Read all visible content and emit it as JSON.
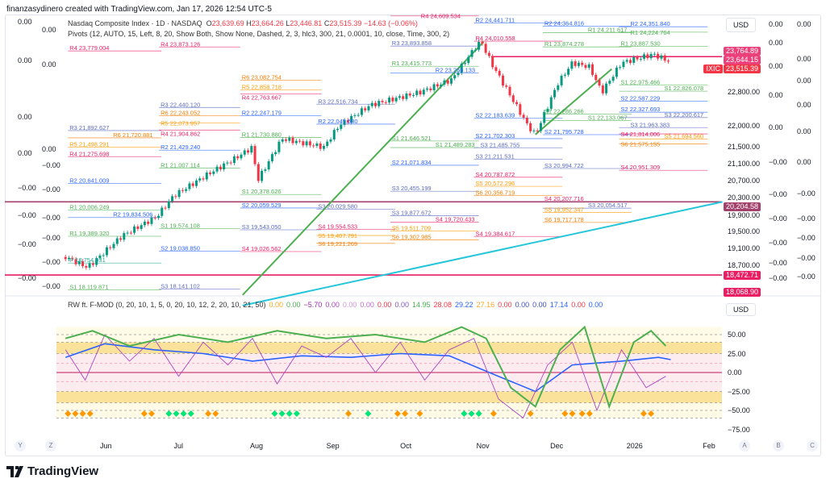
{
  "header": {
    "credit": "finanzasydinero created with TradingView.com, Jan 17, 2026 12:54 UTC-5"
  },
  "legend": {
    "symbol": "Nasdaq Composite Index · 1D · NASDAQ",
    "o_label": "O",
    "open": "23,639.69",
    "h_label": "H",
    "high": "23,664.26",
    "l_label": "L",
    "low": "23,446.81",
    "c_label": "C",
    "close": "23,515.39",
    "change": "−14.63 (−0.06%)",
    "pivots": "Pivots (12, AUTO, 15, Left, 8, 20, Show Both, Show None, Dashed, 2, 3, hlc3, 300, 21, 0.0001, 10, close, Time, 300, 2)"
  },
  "indicator_legend": {
    "name": "RW ft. F-MOD (0, 20, 10, 1, 5, 0, 20, 10, 12, 2, 20, 10, 21, 50)",
    "values": [
      {
        "v": "0.00",
        "c": "#f5a623"
      },
      {
        "v": "0.00",
        "c": "#4caf50"
      },
      {
        "v": "−5.70",
        "c": "#9c27b0"
      },
      {
        "v": "0.00",
        "c": "#ab47bc"
      },
      {
        "v": "0.00",
        "c": "#ce93d8"
      },
      {
        "v": "0.00",
        "c": "#ba68c8"
      },
      {
        "v": "0.00",
        "c": "#f23645"
      },
      {
        "v": "0.00",
        "c": "#7e57c2"
      },
      {
        "v": "14.95",
        "c": "#4caf50"
      },
      {
        "v": "28.08",
        "c": "#f23645"
      },
      {
        "v": "29.22",
        "c": "#2962ff"
      },
      {
        "v": "27.16",
        "c": "#f5a623"
      },
      {
        "v": "0.00",
        "c": "#f23645"
      },
      {
        "v": "0.00",
        "c": "#3f51b5"
      },
      {
        "v": "0.00",
        "c": "#3f51b5"
      },
      {
        "v": "17.14",
        "c": "#2962ff"
      },
      {
        "v": "0.00",
        "c": "#f23645"
      },
      {
        "v": "0.00",
        "c": "#2962ff"
      }
    ]
  },
  "price_axis": {
    "currency": "USD",
    "ticks": [
      22800,
      22000,
      21500,
      21100,
      20700,
      20300,
      19900,
      19500,
      19100,
      18700
    ],
    "tags": [
      {
        "v": "23,764.89",
        "c": "#ec407a",
        "p": 23764.89
      },
      {
        "v": "23,644.15",
        "c": "#ec407a",
        "p": 23644.15
      },
      {
        "v": "23,515.39",
        "c": "#f23645",
        "p": 23515.39,
        "sym": "IXIC"
      },
      {
        "v": "20,204.58",
        "c": "#a3416d",
        "p": 20204.58
      },
      {
        "v": "18,472.71",
        "c": "#e91e63",
        "p": 18472.71
      },
      {
        "v": "18,068.90",
        "c": "#e91e63",
        "p": 18068.9
      }
    ]
  },
  "side_axes": {
    "label": "0.00",
    "neg_label": "−0.00"
  },
  "indicator_axis": {
    "currency": "USD",
    "ticks": [
      50,
      25,
      0,
      -25,
      -50,
      -75
    ]
  },
  "time_axis": {
    "labels": [
      {
        "t": "Jun",
        "d": 0
      },
      {
        "t": "Jul",
        "d": 30
      },
      {
        "t": "Aug",
        "d": 61
      },
      {
        "t": "Sep",
        "d": 92
      },
      {
        "t": "Oct",
        "d": 122
      },
      {
        "t": "Nov",
        "d": 153
      },
      {
        "t": "Dec",
        "d": 183
      },
      {
        "t": "2026",
        "d": 214
      },
      {
        "t": "Feb",
        "d": 245
      }
    ],
    "left_buttons": [
      "Y",
      "Z"
    ],
    "right_buttons": [
      "A",
      "B",
      "C"
    ]
  },
  "branding": "TradingView",
  "colors": {
    "up": "#089981",
    "down": "#f23645",
    "R1": "#4caf50",
    "R2": "#2962ff",
    "R3": "#5c6bc0",
    "R4": "#e91e63",
    "R5": "#ff9800",
    "R6": "#f57c00",
    "P": "#26a69a",
    "S1": "#4caf50",
    "S2": "#2962ff",
    "S3": "#5c6bc0",
    "S4": "#e91e63",
    "S5": "#ff9800",
    "S6": "#f57c00"
  },
  "chart_data": {
    "type": "candlestick",
    "title": "Nasdaq Composite Index · 1D · NASDAQ",
    "x_unit": "days since Jun 1 2025",
    "close_path": [
      [
        -16,
        18900
      ],
      [
        -7,
        18650
      ],
      [
        7,
        19400
      ],
      [
        21,
        19850
      ],
      [
        28,
        20350
      ],
      [
        43,
        20900
      ],
      [
        52,
        21200
      ],
      [
        60,
        21500
      ],
      [
        62,
        20700
      ],
      [
        72,
        21700
      ],
      [
        89,
        21500
      ],
      [
        95,
        22000
      ],
      [
        108,
        22500
      ],
      [
        128,
        22800
      ],
      [
        141,
        23100
      ],
      [
        151,
        23900
      ],
      [
        153,
        24000
      ],
      [
        157,
        23500
      ],
      [
        167,
        22500
      ],
      [
        172,
        22000
      ],
      [
        175,
        21800
      ],
      [
        184,
        23000
      ],
      [
        190,
        23500
      ],
      [
        197,
        23400
      ],
      [
        202,
        22800
      ],
      [
        210,
        23500
      ],
      [
        223,
        23700
      ],
      [
        230,
        23515
      ]
    ],
    "pivot_segments": [
      {
        "from": -15,
        "to": 23,
        "levels": [
          [
            "R4",
            23779.004
          ],
          [
            "R3",
            21892.627
          ],
          [
            "R6",
            21720.881
          ],
          [
            "R5",
            21498.291
          ],
          [
            "R4",
            21275.698
          ],
          [
            "R2",
            20641.009
          ],
          [
            "R1",
            20006.249
          ],
          [
            "R2",
            19834.506
          ],
          [
            "R1",
            19389.32
          ],
          [
            "P",
            18754.931
          ],
          [
            "S1",
            18119.871
          ]
        ]
      },
      {
        "from": 22,
        "to": 55,
        "levels": [
          [
            "R4",
            23873.126
          ],
          [
            "R3",
            22440.12
          ],
          [
            "R6",
            22243.052
          ],
          [
            "R5",
            22073.957
          ],
          [
            "R4",
            21904.862
          ],
          [
            "R2",
            21429.24
          ],
          [
            "R1",
            21007.114
          ],
          [
            "S1",
            19574.108
          ],
          [
            "S2",
            19038.85
          ],
          [
            "S3",
            18141.102
          ]
        ]
      },
      {
        "from": 55,
        "to": 88,
        "levels": [
          [
            "R6",
            23082.754
          ],
          [
            "R5",
            22858.718
          ],
          [
            "R4",
            22763.667
          ],
          [
            "R2",
            22247.179
          ],
          [
            "R1",
            21730.88
          ],
          [
            "S1",
            20378.626
          ],
          [
            "S2",
            20059.529
          ],
          [
            "S3",
            19543.05
          ],
          [
            "S4",
            19026.562
          ]
        ]
      },
      {
        "from": 86,
        "to": 118,
        "levels": [
          [
            "R3",
            22516.734
          ],
          [
            "R2",
            22045.68
          ],
          [
            "S3",
            20029.58
          ],
          [
            "S4",
            19554.533
          ],
          [
            "S5",
            19407.791
          ],
          [
            "S6",
            19221.269
          ]
        ]
      },
      {
        "from": 116,
        "to": 152,
        "levels": [
          [
            "R4",
            24609.534
          ],
          [
            "R3",
            23893.858
          ],
          [
            "R1",
            23415.773
          ],
          [
            "R2",
            23258.133
          ],
          [
            "S1",
            21646.521
          ],
          [
            "S1",
            21489.283
          ],
          [
            "S2",
            21071.834
          ],
          [
            "S3",
            20455.199
          ],
          [
            "S3",
            19877.672
          ],
          [
            "S4",
            19720.433
          ],
          [
            "S5",
            19511.709
          ],
          [
            "S6",
            19302.985
          ]
        ]
      },
      {
        "from": 150,
        "to": 186,
        "levels": [
          [
            "R2",
            24441.711
          ],
          [
            "R4",
            24010.558
          ],
          [
            "S2",
            22183.639
          ],
          [
            "S2",
            21702.303
          ],
          [
            "S3",
            21485.755
          ],
          [
            "S3",
            21211.531
          ],
          [
            "S4",
            20787.872
          ],
          [
            "S5",
            20572.296
          ],
          [
            "S6",
            20356.719
          ],
          [
            "S4",
            19384.617
          ]
        ]
      },
      {
        "from": 178,
        "to": 214,
        "levels": [
          [
            "R2",
            24364.816
          ],
          [
            "R1",
            24211.617
          ],
          [
            "R1",
            23874.278
          ],
          [
            "S1",
            22286.266
          ],
          [
            "S1",
            22133.067
          ],
          [
            "S2",
            21795.728
          ],
          [
            "S3",
            20994.722
          ],
          [
            "S4",
            20207.716
          ],
          [
            "S3",
            20054.517
          ],
          [
            "S5",
            19952.347
          ],
          [
            "S6",
            19717.178
          ]
        ]
      },
      {
        "from": 209,
        "to": 245,
        "levels": [
          [
            "R2",
            24351.84
          ],
          [
            "R1",
            24224.764
          ],
          [
            "R1",
            23887.53
          ],
          [
            "S1",
            22975.466
          ],
          [
            "S1",
            22826.078
          ],
          [
            "S2",
            22587.229
          ],
          [
            "S2",
            22327.693
          ],
          [
            "S3",
            22200.617
          ],
          [
            "S3",
            21963.383
          ],
          [
            "S4",
            21814.006
          ],
          [
            "S5",
            21694.56
          ],
          [
            "S6",
            21575.155
          ],
          [
            "S4",
            20951.309
          ]
        ]
      }
    ],
    "trendlines": [
      {
        "c": "#4caf50",
        "p": [
          [
            56,
            18000
          ],
          [
            154,
            24000
          ]
        ]
      },
      {
        "c": "#4caf50",
        "p": [
          [
            175,
            21800
          ],
          [
            206,
            23350
          ]
        ]
      },
      {
        "c": "#26c6da",
        "p": [
          [
            56,
            17750
          ],
          [
            251,
            20204.58
          ]
        ]
      }
    ],
    "horizontal_lines": [
      {
        "p": 20204.58,
        "c": "#a3416d"
      },
      {
        "p": 18472.71,
        "c": "#e91e63"
      },
      {
        "p": 23644.15,
        "c": "#e91e63",
        "from": 157
      }
    ],
    "indicator": {
      "ylim": [
        -80,
        70
      ],
      "bands": [
        [
          25,
          40,
          "#fbe29a"
        ],
        [
          -40,
          -25,
          "#fbe29a"
        ],
        [
          -25,
          25,
          "#fdecef"
        ],
        [
          40,
          60,
          "#fffbe6"
        ],
        [
          -60,
          -40,
          "#fffbe6"
        ]
      ],
      "blue": [
        [
          -16,
          20
        ],
        [
          0,
          38
        ],
        [
          20,
          30
        ],
        [
          40,
          25
        ],
        [
          60,
          15
        ],
        [
          80,
          22
        ],
        [
          100,
          20
        ],
        [
          120,
          25
        ],
        [
          140,
          22
        ],
        [
          160,
          -5
        ],
        [
          175,
          -25
        ],
        [
          190,
          10
        ],
        [
          210,
          15
        ],
        [
          225,
          20
        ],
        [
          230,
          17
        ]
      ],
      "green": [
        [
          -16,
          45
        ],
        [
          -5,
          55
        ],
        [
          10,
          35
        ],
        [
          30,
          50
        ],
        [
          50,
          40
        ],
        [
          70,
          55
        ],
        [
          90,
          45
        ],
        [
          110,
          50
        ],
        [
          130,
          40
        ],
        [
          145,
          60
        ],
        [
          155,
          45
        ],
        [
          165,
          -20
        ],
        [
          175,
          -45
        ],
        [
          185,
          30
        ],
        [
          195,
          60
        ],
        [
          205,
          -45
        ],
        [
          215,
          40
        ],
        [
          222,
          55
        ],
        [
          228,
          35
        ]
      ],
      "purple": [
        [
          -16,
          30
        ],
        [
          -8,
          -10
        ],
        [
          0,
          50
        ],
        [
          10,
          15
        ],
        [
          20,
          45
        ],
        [
          30,
          -5
        ],
        [
          40,
          40
        ],
        [
          50,
          10
        ],
        [
          60,
          45
        ],
        [
          70,
          -15
        ],
        [
          80,
          35
        ],
        [
          90,
          20
        ],
        [
          100,
          45
        ],
        [
          110,
          0
        ],
        [
          120,
          40
        ],
        [
          130,
          -10
        ],
        [
          140,
          30
        ],
        [
          150,
          45
        ],
        [
          160,
          -35
        ],
        [
          170,
          -60
        ],
        [
          180,
          10
        ],
        [
          190,
          40
        ],
        [
          200,
          -50
        ],
        [
          210,
          30
        ],
        [
          220,
          -20
        ],
        [
          228,
          -5
        ]
      ],
      "diamonds": [
        [
          -15,
          "#ff9800"
        ],
        [
          -12,
          "#ff9800"
        ],
        [
          -9,
          "#ff9800"
        ],
        [
          -6,
          "#ff9800"
        ],
        [
          16,
          "#ff9800"
        ],
        [
          19,
          "#ff9800"
        ],
        [
          26,
          "#00e676"
        ],
        [
          29,
          "#00e676"
        ],
        [
          32,
          "#00e676"
        ],
        [
          35,
          "#00e676"
        ],
        [
          42,
          "#ff9800"
        ],
        [
          45,
          "#ff9800"
        ],
        [
          69,
          "#00e676"
        ],
        [
          72,
          "#00e676"
        ],
        [
          75,
          "#00e676"
        ],
        [
          78,
          "#00e676"
        ],
        [
          99,
          "#ff9800"
        ],
        [
          107,
          "#00e676"
        ],
        [
          119,
          "#ff9800"
        ],
        [
          122,
          "#ff9800"
        ],
        [
          128,
          "#ff9800"
        ],
        [
          146,
          "#00e676"
        ],
        [
          149,
          "#00e676"
        ],
        [
          152,
          "#00e676"
        ],
        [
          158,
          "#ff9800"
        ],
        [
          173,
          "#ff9800"
        ],
        [
          187,
          "#ff9800"
        ],
        [
          190,
          "#ff9800"
        ],
        [
          194,
          "#ff9800"
        ],
        [
          197,
          "#ff9800"
        ],
        [
          219,
          "#ff9800"
        ],
        [
          222,
          "#ff9800"
        ]
      ]
    }
  }
}
